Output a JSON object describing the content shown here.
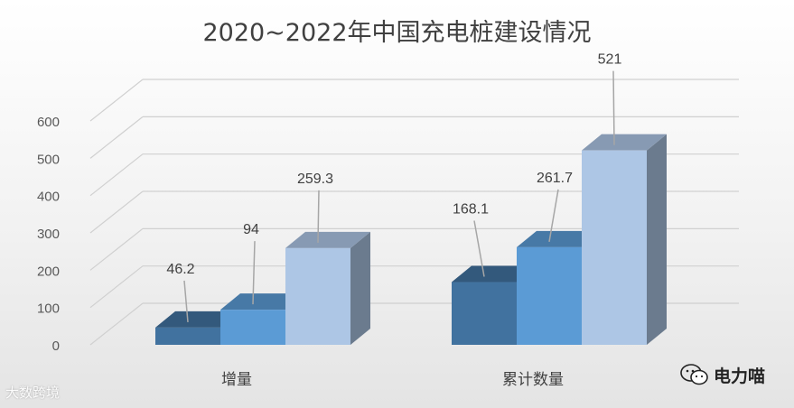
{
  "chart_data": {
    "type": "bar",
    "title": "2020~2022年中国充电桩建设情况",
    "categories": [
      "增量",
      "累计数量"
    ],
    "series": [
      {
        "values": [
          46.2,
          168.1
        ],
        "color": "#41729f"
      },
      {
        "values": [
          94,
          261.7
        ],
        "color": "#5b9bd5"
      },
      {
        "values": [
          259.3,
          521
        ],
        "color": "#adc6e5"
      }
    ],
    "ylim": [
      0,
      600
    ],
    "yticks": [
      0,
      100,
      200,
      300,
      400,
      500,
      600
    ],
    "grid": true,
    "data_labels": [
      [
        "46.2",
        "94",
        "259.3"
      ],
      [
        "168.1",
        "261.7",
        "521"
      ]
    ]
  },
  "watermarks": {
    "left": "大数跨境",
    "right": "电力喵"
  }
}
